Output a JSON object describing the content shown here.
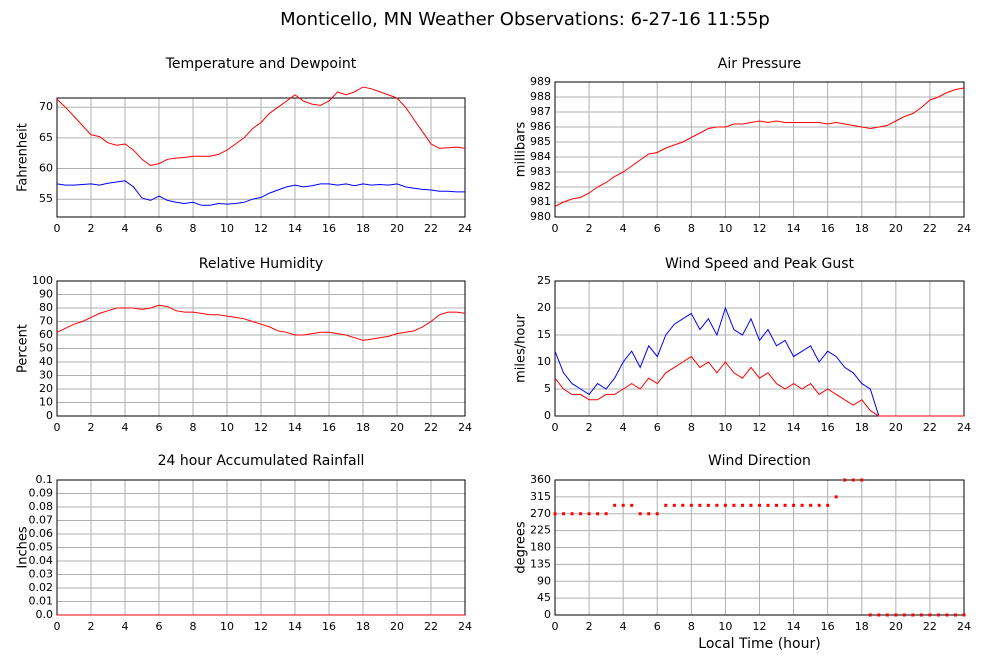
{
  "title": "Monticello, MN Weather Observations: 6-27-16 11:55p",
  "chart_data": [
    {
      "type": "line",
      "title": "Temperature and Dewpoint",
      "ylabel": "Fahrenheit",
      "xlim": [
        0,
        24
      ],
      "xticks": [
        0,
        2,
        4,
        6,
        8,
        10,
        12,
        14,
        16,
        18,
        20,
        22,
        24
      ],
      "ylim": [
        52.1,
        71.5
      ],
      "yticks": [
        55,
        60,
        65,
        70
      ],
      "grid": true,
      "x": [
        0,
        0.5,
        1,
        1.5,
        2,
        2.5,
        3,
        3.5,
        4,
        4.5,
        5,
        5.5,
        6,
        6.5,
        7,
        7.5,
        8,
        8.5,
        9,
        9.5,
        10,
        10.5,
        11,
        11.5,
        12,
        12.5,
        13,
        13.5,
        14,
        14.5,
        15,
        15.5,
        16,
        16.5,
        17,
        17.5,
        18,
        18.5,
        19,
        19.5,
        20,
        20.5,
        21,
        21.5,
        22,
        22.5,
        23,
        23.5,
        24
      ],
      "series": [
        {
          "color": "#ff0000",
          "values": [
            71.3,
            70,
            68.5,
            67,
            65.5,
            65.2,
            64.2,
            63.8,
            64,
            63,
            61.5,
            60.5,
            60.8,
            61.5,
            61.7,
            61.8,
            62,
            62,
            62,
            62.3,
            63,
            64,
            65,
            66.5,
            67.5,
            69,
            70,
            71,
            72,
            71,
            70.5,
            70.3,
            71,
            72.5,
            72,
            72.5,
            73.3,
            73,
            72.5,
            72,
            71.5,
            70,
            68,
            66,
            64,
            63.3,
            63.4,
            63.5,
            63.3
          ]
        },
        {
          "color": "#0000ff",
          "values": [
            57.5,
            57.3,
            57.3,
            57.4,
            57.5,
            57.3,
            57.6,
            57.8,
            58,
            57,
            55.2,
            54.8,
            55.5,
            54.8,
            54.5,
            54.3,
            54.5,
            54,
            54,
            54.3,
            54.2,
            54.3,
            54.5,
            55,
            55.3,
            56,
            56.5,
            57,
            57.3,
            57,
            57.2,
            57.5,
            57.5,
            57.3,
            57.5,
            57.2,
            57.5,
            57.3,
            57.4,
            57.3,
            57.5,
            57,
            56.8,
            56.6,
            56.5,
            56.3,
            56.3,
            56.2,
            56.2
          ]
        }
      ]
    },
    {
      "type": "line",
      "title": "Air Pressure",
      "ylabel": "millibars",
      "xlim": [
        0,
        24
      ],
      "xticks": [
        0,
        2,
        4,
        6,
        8,
        10,
        12,
        14,
        16,
        18,
        20,
        22,
        24
      ],
      "ylim": [
        980,
        989
      ],
      "yticks": [
        980,
        981,
        982,
        983,
        984,
        985,
        986,
        987,
        988,
        989
      ],
      "grid": true,
      "x": [
        0,
        0.5,
        1,
        1.5,
        2,
        2.5,
        3,
        3.5,
        4,
        4.5,
        5,
        5.5,
        6,
        6.5,
        7,
        7.5,
        8,
        8.5,
        9,
        9.5,
        10,
        10.5,
        11,
        11.5,
        12,
        12.5,
        13,
        13.5,
        14,
        14.5,
        15,
        15.5,
        16,
        16.5,
        17,
        17.5,
        18,
        18.5,
        19,
        19.5,
        20,
        20.5,
        21,
        21.5,
        22,
        22.5,
        23,
        23.5,
        24
      ],
      "series": [
        {
          "color": "#ff0000",
          "values": [
            980.7,
            981,
            981.2,
            981.3,
            981.6,
            982,
            982.3,
            982.7,
            983,
            983.4,
            983.8,
            984.2,
            984.3,
            984.6,
            984.8,
            985,
            985.3,
            985.6,
            985.9,
            986,
            986,
            986.2,
            986.2,
            986.3,
            986.4,
            986.3,
            986.4,
            986.3,
            986.3,
            986.3,
            986.3,
            986.3,
            986.2,
            986.3,
            986.2,
            986.1,
            986,
            985.9,
            986,
            986.1,
            986.4,
            986.7,
            986.9,
            987.3,
            987.8,
            988,
            988.3,
            988.5,
            988.6
          ]
        }
      ]
    },
    {
      "type": "line",
      "title": "Relative Humidity",
      "ylabel": "Percent",
      "xlim": [
        0,
        24
      ],
      "xticks": [
        0,
        2,
        4,
        6,
        8,
        10,
        12,
        14,
        16,
        18,
        20,
        22,
        24
      ],
      "ylim": [
        0,
        100
      ],
      "yticks": [
        0,
        10,
        20,
        30,
        40,
        50,
        60,
        70,
        80,
        90,
        100
      ],
      "grid": true,
      "x": [
        0,
        0.5,
        1,
        1.5,
        2,
        2.5,
        3,
        3.5,
        4,
        4.5,
        5,
        5.5,
        6,
        6.5,
        7,
        7.5,
        8,
        8.5,
        9,
        9.5,
        10,
        10.5,
        11,
        11.5,
        12,
        12.5,
        13,
        13.5,
        14,
        14.5,
        15,
        15.5,
        16,
        16.5,
        17,
        17.5,
        18,
        18.5,
        19,
        19.5,
        20,
        20.5,
        21,
        21.5,
        22,
        22.5,
        23,
        23.5,
        24
      ],
      "series": [
        {
          "color": "#ff0000",
          "values": [
            62,
            65,
            68,
            70,
            73,
            76,
            78,
            80,
            80,
            80,
            79,
            80,
            82,
            81,
            78,
            77,
            77,
            76,
            75,
            75,
            74,
            73,
            72,
            70,
            68,
            66,
            63,
            62,
            60,
            60,
            61,
            62,
            62,
            61,
            60,
            58,
            56,
            57,
            58,
            59,
            61,
            62,
            63,
            66,
            70,
            75,
            77,
            77,
            76
          ]
        }
      ]
    },
    {
      "type": "line",
      "title": "Wind Speed and Peak Gust",
      "ylabel": "miles/hour",
      "xlim": [
        0,
        24
      ],
      "xticks": [
        0,
        2,
        4,
        6,
        8,
        10,
        12,
        14,
        16,
        18,
        20,
        22,
        24
      ],
      "ylim": [
        0,
        25
      ],
      "yticks": [
        0,
        5,
        10,
        15,
        20,
        25
      ],
      "grid": true,
      "x": [
        0,
        0.5,
        1,
        1.5,
        2,
        2.5,
        3,
        3.5,
        4,
        4.5,
        5,
        5.5,
        6,
        6.5,
        7,
        7.5,
        8,
        8.5,
        9,
        9.5,
        10,
        10.5,
        11,
        11.5,
        12,
        12.5,
        13,
        13.5,
        14,
        14.5,
        15,
        15.5,
        16,
        16.5,
        17,
        17.5,
        18,
        18.5,
        19,
        19.5,
        20,
        20.5,
        21,
        21.5,
        22,
        22.5,
        23,
        23.5,
        24
      ],
      "series": [
        {
          "color": "#0000ff",
          "values": [
            12,
            8,
            6,
            5,
            4,
            6,
            5,
            7,
            10,
            12,
            9,
            13,
            11,
            15,
            17,
            18,
            19,
            16,
            18,
            15,
            20,
            16,
            15,
            18,
            14,
            16,
            13,
            14,
            11,
            12,
            13,
            10,
            12,
            11,
            9,
            8,
            6,
            5,
            0,
            0,
            0,
            0,
            0,
            0,
            0,
            0,
            0,
            0,
            0
          ]
        },
        {
          "color": "#ff0000",
          "values": [
            7,
            5,
            4,
            4,
            3,
            3,
            4,
            4,
            5,
            6,
            5,
            7,
            6,
            8,
            9,
            10,
            11,
            9,
            10,
            8,
            10,
            8,
            7,
            9,
            7,
            8,
            6,
            5,
            6,
            5,
            6,
            4,
            5,
            4,
            3,
            2,
            3,
            1,
            0,
            0,
            0,
            0,
            0,
            0,
            0,
            0,
            0,
            0,
            0
          ]
        }
      ]
    },
    {
      "type": "line",
      "title": "24 hour Accumulated Rainfall",
      "ylabel": "Inches",
      "xlim": [
        0,
        24
      ],
      "xticks": [
        0,
        2,
        4,
        6,
        8,
        10,
        12,
        14,
        16,
        18,
        20,
        22,
        24
      ],
      "ylim": [
        0,
        0.1
      ],
      "yticks": [
        {
          "value": 0,
          "label": "0.0"
        },
        0.01,
        0.02,
        0.03,
        0.04,
        0.05,
        0.06,
        0.07,
        0.08,
        0.09,
        0.1
      ],
      "grid": true,
      "x": [
        0,
        0.5,
        1,
        1.5,
        2,
        2.5,
        3,
        3.5,
        4,
        4.5,
        5,
        5.5,
        6,
        6.5,
        7,
        7.5,
        8,
        8.5,
        9,
        9.5,
        10,
        10.5,
        11,
        11.5,
        12,
        12.5,
        13,
        13.5,
        14,
        14.5,
        15,
        15.5,
        16,
        16.5,
        17,
        17.5,
        18,
        18.5,
        19,
        19.5,
        20,
        20.5,
        21,
        21.5,
        22,
        22.5,
        23,
        23.5,
        24
      ],
      "series": [
        {
          "color": "#ff0000",
          "values": [
            0,
            0,
            0,
            0,
            0,
            0,
            0,
            0,
            0,
            0,
            0,
            0,
            0,
            0,
            0,
            0,
            0,
            0,
            0,
            0,
            0,
            0,
            0,
            0,
            0,
            0,
            0,
            0,
            0,
            0,
            0,
            0,
            0,
            0,
            0,
            0,
            0,
            0,
            0,
            0,
            0,
            0,
            0,
            0,
            0,
            0,
            0,
            0,
            0
          ]
        }
      ]
    },
    {
      "type": "scatter",
      "title": "Wind Direction",
      "ylabel": "degrees",
      "xlabel": "Local Time (hour)",
      "xlim": [
        0,
        24
      ],
      "xticks": [
        0,
        2,
        4,
        6,
        8,
        10,
        12,
        14,
        16,
        18,
        20,
        22,
        24
      ],
      "ylim": [
        0,
        360
      ],
      "yticks": [
        0,
        45,
        90,
        135,
        180,
        225,
        270,
        315,
        360
      ],
      "grid": true,
      "x": [
        0,
        0.5,
        1,
        1.5,
        2,
        2.5,
        3,
        3.5,
        4,
        4.5,
        5,
        5.5,
        6,
        6.5,
        7,
        7.5,
        8,
        8.5,
        9,
        9.5,
        10,
        10.5,
        11,
        11.5,
        12,
        12.5,
        13,
        13.5,
        14,
        14.5,
        15,
        15.5,
        16,
        16.5,
        17,
        17.5,
        18,
        18.5,
        19,
        19.5,
        20,
        20.5,
        21,
        21.5,
        22,
        22.5,
        23,
        23.5,
        24
      ],
      "series": [
        {
          "color": "#ff0000",
          "values": [
            270,
            270,
            270,
            270,
            270,
            270,
            270,
            292.5,
            292.5,
            292.5,
            270,
            270,
            270,
            292.5,
            292.5,
            292.5,
            292.5,
            292.5,
            292.5,
            292.5,
            292.5,
            292.5,
            292.5,
            292.5,
            292.5,
            292.5,
            292.5,
            292.5,
            292.5,
            292.5,
            292.5,
            292.5,
            292.5,
            315,
            360,
            360,
            360,
            0,
            0,
            0,
            0,
            0,
            0,
            0,
            0,
            0,
            0,
            0,
            0
          ]
        }
      ]
    }
  ]
}
